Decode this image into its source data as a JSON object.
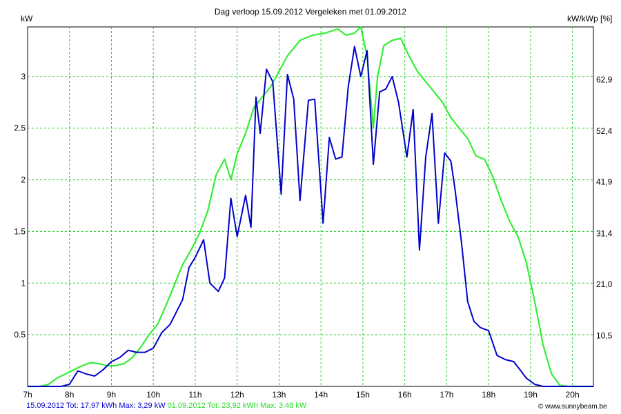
{
  "chart_data": {
    "type": "line",
    "title": "Dag  verloop 15.09.2012   Vergeleken met 01.09.2012",
    "ylabel_left": "kW",
    "ylabel_right": "kW/kWp [%]",
    "xlim": [
      7,
      20.5
    ],
    "ylim": [
      0,
      3.48
    ],
    "x_ticks": [
      {
        "v": 7,
        "label": "7h"
      },
      {
        "v": 8,
        "label": "8h"
      },
      {
        "v": 9,
        "label": "9h"
      },
      {
        "v": 10,
        "label": "10h"
      },
      {
        "v": 11,
        "label": "11h"
      },
      {
        "v": 12,
        "label": "12h"
      },
      {
        "v": 13,
        "label": "13h"
      },
      {
        "v": 14,
        "label": "14h"
      },
      {
        "v": 15,
        "label": "15h"
      },
      {
        "v": 16,
        "label": "16h"
      },
      {
        "v": 17,
        "label": "17h"
      },
      {
        "v": 18,
        "label": "18h"
      },
      {
        "v": 19,
        "label": "19h"
      },
      {
        "v": 20,
        "label": "20h"
      }
    ],
    "y_ticks_left": [
      {
        "v": 0.5,
        "label": "0.5"
      },
      {
        "v": 1,
        "label": "1"
      },
      {
        "v": 1.5,
        "label": "1.5"
      },
      {
        "v": 2,
        "label": "2"
      },
      {
        "v": 2.5,
        "label": "2.5"
      },
      {
        "v": 3,
        "label": "3"
      }
    ],
    "y_ticks_right": [
      {
        "v": 0.49,
        "label": "10,5"
      },
      {
        "v": 0.99,
        "label": "21,0"
      },
      {
        "v": 1.48,
        "label": "31,4"
      },
      {
        "v": 1.98,
        "label": "41,9"
      },
      {
        "v": 2.47,
        "label": "52,4"
      },
      {
        "v": 2.97,
        "label": "62,9"
      }
    ],
    "grid": true,
    "series": [
      {
        "name": "15.09.2012",
        "color": "#0000cc",
        "x": [
          7.0,
          7.5,
          7.8,
          8.0,
          8.2,
          8.4,
          8.6,
          8.8,
          9.0,
          9.2,
          9.4,
          9.6,
          9.8,
          10.0,
          10.2,
          10.4,
          10.55,
          10.7,
          10.85,
          11.0,
          11.2,
          11.35,
          11.55,
          11.7,
          11.85,
          12.0,
          12.2,
          12.33,
          12.45,
          12.55,
          12.7,
          12.85,
          13.05,
          13.2,
          13.35,
          13.5,
          13.7,
          13.85,
          14.05,
          14.2,
          14.35,
          14.5,
          14.65,
          14.8,
          14.95,
          15.1,
          15.25,
          15.4,
          15.55,
          15.7,
          15.85,
          16.05,
          16.2,
          16.35,
          16.5,
          16.65,
          16.8,
          16.95,
          17.1,
          17.2,
          17.35,
          17.5,
          17.65,
          17.8,
          18.0,
          18.2,
          18.4,
          18.6,
          18.75,
          18.9,
          19.1,
          19.3,
          19.55,
          19.8,
          20.0,
          20.5
        ],
        "values": [
          0.0,
          0.0,
          0.0,
          0.02,
          0.15,
          0.12,
          0.1,
          0.16,
          0.24,
          0.28,
          0.35,
          0.33,
          0.33,
          0.37,
          0.52,
          0.6,
          0.72,
          0.84,
          1.15,
          1.25,
          1.42,
          1.0,
          0.92,
          1.05,
          1.82,
          1.45,
          1.85,
          1.54,
          2.8,
          2.45,
          3.07,
          2.95,
          1.86,
          3.02,
          2.78,
          1.8,
          2.77,
          2.78,
          1.58,
          2.41,
          2.2,
          2.22,
          2.9,
          3.29,
          3.0,
          3.25,
          2.15,
          2.85,
          2.88,
          3.0,
          2.75,
          2.22,
          2.68,
          1.32,
          2.22,
          2.64,
          1.58,
          2.26,
          2.18,
          1.9,
          1.4,
          0.82,
          0.63,
          0.57,
          0.54,
          0.3,
          0.26,
          0.24,
          0.16,
          0.08,
          0.02,
          0.0,
          0.0,
          0.0,
          0.0,
          0.0
        ]
      },
      {
        "name": "01.09.2012",
        "color": "#33ee33",
        "x": [
          7.0,
          7.3,
          7.5,
          7.7,
          7.9,
          8.1,
          8.3,
          8.5,
          8.7,
          8.9,
          9.1,
          9.3,
          9.5,
          9.7,
          9.9,
          10.1,
          10.3,
          10.5,
          10.7,
          10.9,
          11.1,
          11.3,
          11.5,
          11.7,
          11.85,
          12.0,
          12.2,
          12.4,
          12.6,
          12.8,
          13.0,
          13.2,
          13.5,
          13.8,
          14.1,
          14.4,
          14.6,
          14.8,
          14.95,
          15.1,
          15.25,
          15.35,
          15.5,
          15.7,
          15.9,
          16.1,
          16.3,
          16.5,
          16.7,
          16.9,
          17.1,
          17.3,
          17.5,
          17.7,
          17.9,
          18.1,
          18.3,
          18.5,
          18.7,
          18.9,
          19.1,
          19.3,
          19.5,
          19.7,
          19.9,
          20.1,
          20.3,
          20.5
        ],
        "values": [
          0.0,
          0.0,
          0.02,
          0.08,
          0.12,
          0.16,
          0.2,
          0.23,
          0.22,
          0.2,
          0.2,
          0.22,
          0.28,
          0.38,
          0.5,
          0.6,
          0.78,
          0.98,
          1.18,
          1.32,
          1.48,
          1.7,
          2.05,
          2.2,
          2.0,
          2.25,
          2.45,
          2.7,
          2.8,
          2.9,
          3.05,
          3.2,
          3.35,
          3.4,
          3.42,
          3.46,
          3.4,
          3.42,
          3.48,
          3.2,
          2.5,
          3.0,
          3.3,
          3.35,
          3.37,
          3.2,
          3.05,
          2.95,
          2.85,
          2.75,
          2.6,
          2.5,
          2.4,
          2.23,
          2.2,
          2.03,
          1.8,
          1.6,
          1.45,
          1.2,
          0.82,
          0.4,
          0.12,
          0.01,
          0.0,
          0.0,
          0.0,
          0.0
        ]
      }
    ],
    "legend_text": [
      {
        "text": "15.09.2012 Tot: 17,97 kWh Max: 3,29 kW",
        "color": "#0000cc"
      },
      {
        "text": " 01.09.2012 Tot: 23,92 kWh Max: 3,48 kW",
        "color": "#22dd22"
      }
    ],
    "credit": "© www.sunnybeam.be"
  }
}
